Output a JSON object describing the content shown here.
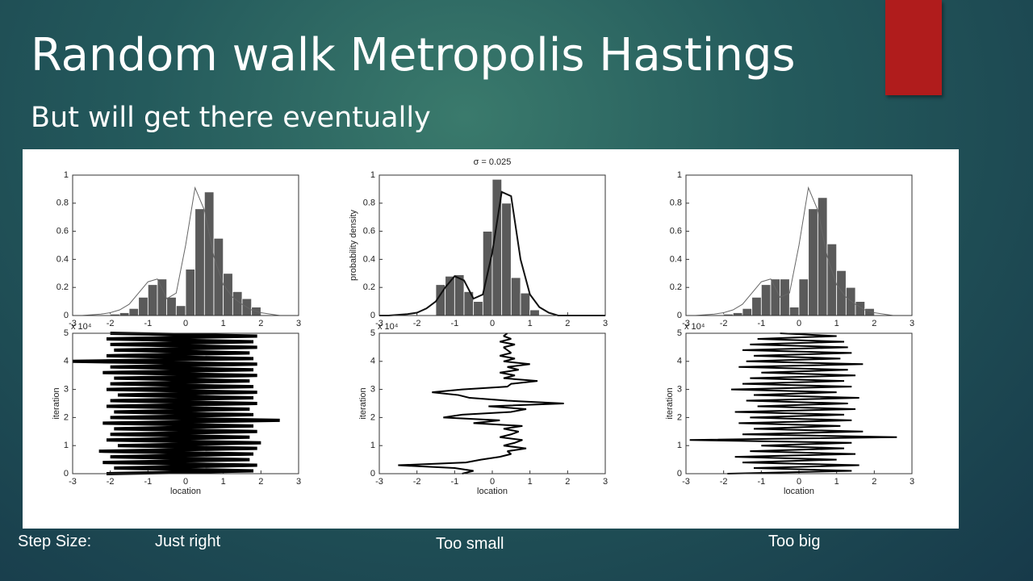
{
  "slide": {
    "title": "Random walk Metropolis Hastings",
    "subtitle": "But will get there eventually",
    "step_label": "Step Size:",
    "captions": [
      "Just right",
      "Too small",
      "Too big"
    ]
  },
  "chart_data": [
    {
      "type": "histogram",
      "color": "#5a5a5a",
      "bins": [
        -2,
        -1.75,
        -1.5,
        -1.25,
        -1,
        -0.75,
        -0.5,
        -0.25,
        0,
        0.25,
        0.5,
        0.75,
        1,
        1.25,
        1.5,
        1.75,
        2
      ],
      "values": [
        0.01,
        0.02,
        0.05,
        0.13,
        0.22,
        0.26,
        0.13,
        0.07,
        0.33,
        0.76,
        0.88,
        0.55,
        0.3,
        0.17,
        0.12,
        0.06
      ],
      "line": {
        "color": "#666666",
        "x": [
          -3,
          -2.75,
          -2.5,
          -2.25,
          -2,
          -1.75,
          -1.5,
          -1.25,
          -1,
          -0.75,
          -0.5,
          -0.25,
          0,
          0.25,
          0.5,
          0.75,
          1,
          1.25,
          1.5,
          1.75,
          2,
          2.25,
          2.5,
          2.75,
          3
        ],
        "values": [
          0,
          0,
          0.005,
          0.01,
          0.02,
          0.04,
          0.08,
          0.16,
          0.24,
          0.26,
          0.12,
          0.16,
          0.5,
          0.91,
          0.75,
          0.42,
          0.22,
          0.13,
          0.08,
          0.04,
          0.02,
          0.01,
          0,
          0,
          0
        ]
      },
      "xlim": [
        -3,
        3
      ],
      "ylim": [
        0,
        1
      ],
      "xticks": [
        -3,
        -2,
        -1,
        0,
        1,
        2,
        3
      ],
      "yticks": [
        0,
        0.2,
        0.4,
        0.6,
        0.8,
        1
      ]
    },
    {
      "type": "histogram",
      "title": "σ = 0.025",
      "ylabel": "probability density",
      "color": "#5a5a5a",
      "bins": [
        -1.5,
        -1.25,
        -1,
        -0.75,
        -0.5,
        -0.25,
        0,
        0.25,
        0.5,
        0.75,
        1,
        1.25
      ],
      "values": [
        0.22,
        0.28,
        0.29,
        0.17,
        0.1,
        0.6,
        0.97,
        0.8,
        0.27,
        0.16,
        0.04
      ],
      "line": {
        "color": "#111111",
        "x": [
          -3,
          -2.75,
          -2.5,
          -2.25,
          -2,
          -1.75,
          -1.5,
          -1.25,
          -1,
          -0.75,
          -0.5,
          -0.25,
          0,
          0.25,
          0.5,
          0.75,
          1,
          1.25,
          1.5,
          1.75,
          2,
          2.25,
          2.5,
          2.75,
          3
        ],
        "values": [
          0,
          0,
          0.005,
          0.01,
          0.02,
          0.05,
          0.1,
          0.2,
          0.28,
          0.25,
          0.12,
          0.15,
          0.45,
          0.88,
          0.85,
          0.4,
          0.15,
          0.06,
          0.02,
          0,
          0,
          0,
          0,
          0,
          0
        ]
      },
      "xlim": [
        -3,
        3
      ],
      "ylim": [
        0,
        1
      ],
      "xticks": [
        -3,
        -2,
        -1,
        0,
        1,
        2,
        3
      ],
      "yticks": [
        0,
        0.2,
        0.4,
        0.6,
        0.8,
        1
      ]
    },
    {
      "type": "histogram",
      "color": "#5a5a5a",
      "bins": [
        -2,
        -1.75,
        -1.5,
        -1.25,
        -1,
        -0.75,
        -0.5,
        -0.25,
        0,
        0.25,
        0.5,
        0.75,
        1,
        1.25,
        1.5,
        1.75,
        2
      ],
      "values": [
        0.01,
        0.02,
        0.05,
        0.13,
        0.22,
        0.26,
        0.26,
        0.06,
        0.26,
        0.76,
        0.84,
        0.51,
        0.32,
        0.2,
        0.1,
        0.05
      ],
      "line": {
        "color": "#666666",
        "x": [
          -3,
          -2.75,
          -2.5,
          -2.25,
          -2,
          -1.75,
          -1.5,
          -1.25,
          -1,
          -0.75,
          -0.5,
          -0.25,
          0,
          0.25,
          0.5,
          0.75,
          1,
          1.25,
          1.5,
          1.75,
          2,
          2.25,
          2.5,
          2.75,
          3
        ],
        "values": [
          0,
          0,
          0.005,
          0.01,
          0.02,
          0.04,
          0.08,
          0.16,
          0.24,
          0.26,
          0.13,
          0.16,
          0.5,
          0.91,
          0.75,
          0.42,
          0.22,
          0.13,
          0.08,
          0.04,
          0.02,
          0.01,
          0,
          0,
          0
        ]
      },
      "xlim": [
        -3,
        3
      ],
      "ylim": [
        0,
        1
      ],
      "xticks": [
        -3,
        -2,
        -1,
        0,
        1,
        2,
        3
      ],
      "yticks": [
        0,
        0.2,
        0.4,
        0.6,
        0.8,
        1
      ]
    },
    {
      "type": "trace",
      "color": "#000000",
      "xlabel": "location",
      "ylabel": "iteration",
      "y_scale_label": "x 10⁴",
      "x": [
        -2.1,
        1.8,
        -1.9,
        1.9,
        -2.2,
        1.7,
        -2.0,
        1.8,
        -2.3,
        1.9,
        -1.8,
        2.0,
        -2.1,
        1.7,
        -2.0,
        1.9,
        -1.9,
        1.8,
        -2.2,
        2.5,
        -2.0,
        1.8,
        -1.9,
        1.7,
        -2.1,
        1.9,
        -2.0,
        1.8,
        -1.8,
        1.9,
        -2.1,
        1.8,
        -2.0,
        1.7,
        -1.9,
        1.9,
        -2.2,
        1.8,
        -2.0,
        1.9,
        -3.0,
        1.8,
        -2.1,
        1.7,
        -1.9,
        1.9,
        -2.0,
        1.8,
        -2.1,
        1.9,
        -2.0
      ],
      "y": [
        0,
        0.1,
        0.2,
        0.3,
        0.4,
        0.5,
        0.6,
        0.7,
        0.8,
        0.9,
        1,
        1.1,
        1.2,
        1.3,
        1.4,
        1.5,
        1.6,
        1.7,
        1.8,
        1.9,
        2,
        2.1,
        2.2,
        2.3,
        2.4,
        2.5,
        2.6,
        2.7,
        2.8,
        2.9,
        3,
        3.1,
        3.2,
        3.3,
        3.4,
        3.5,
        3.6,
        3.7,
        3.8,
        3.9,
        4,
        4.1,
        4.2,
        4.3,
        4.4,
        4.5,
        4.6,
        4.7,
        4.8,
        4.9,
        5
      ],
      "xlim": [
        -3,
        3
      ],
      "ylim": [
        0,
        5
      ],
      "xticks": [
        -3,
        -2,
        -1,
        0,
        1,
        2,
        3
      ],
      "yticks": [
        0,
        1,
        2,
        3,
        4,
        5
      ]
    },
    {
      "type": "trace",
      "color": "#000000",
      "xlabel": "location",
      "ylabel": "iteration",
      "y_scale_label": "x 10⁴",
      "x": [
        -0.8,
        -0.5,
        -1.0,
        -2.5,
        -0.7,
        -0.3,
        0.2,
        0.5,
        0.4,
        0.9,
        0.3,
        0.6,
        0.8,
        0.2,
        0.5,
        0.7,
        0.3,
        0.8,
        -0.5,
        0.2,
        -1.3,
        -0.8,
        0.5,
        0.9,
        -0.1,
        1.9,
        0.4,
        -0.6,
        -0.9,
        -1.6,
        -0.8,
        0.4,
        0.5,
        1.2,
        0.3,
        0.6,
        0.2,
        0.7,
        0.4,
        1.0,
        0.3,
        0.6,
        0.2,
        0.5,
        0.4,
        0.3,
        0.6,
        0.2,
        0.5,
        0.3,
        0.4
      ],
      "y": [
        0,
        0.1,
        0.2,
        0.3,
        0.4,
        0.5,
        0.6,
        0.7,
        0.8,
        0.9,
        1,
        1.1,
        1.2,
        1.3,
        1.4,
        1.5,
        1.6,
        1.7,
        1.8,
        1.9,
        2,
        2.1,
        2.2,
        2.3,
        2.4,
        2.5,
        2.6,
        2.7,
        2.8,
        2.9,
        3,
        3.1,
        3.2,
        3.3,
        3.4,
        3.5,
        3.6,
        3.7,
        3.8,
        3.9,
        4,
        4.1,
        4.2,
        4.3,
        4.4,
        4.5,
        4.6,
        4.7,
        4.8,
        4.9,
        5
      ],
      "xlim": [
        -3,
        3
      ],
      "ylim": [
        0,
        5
      ],
      "xticks": [
        -3,
        -2,
        -1,
        0,
        1,
        2,
        3
      ],
      "yticks": [
        0,
        1,
        2,
        3,
        4,
        5
      ]
    },
    {
      "type": "trace",
      "color": "#000000",
      "xlabel": "location",
      "ylabel": "iteration",
      "y_scale_label": "x 10⁴",
      "x": [
        -1.9,
        1.4,
        -1.2,
        1.6,
        -1.5,
        1.0,
        -1.7,
        1.5,
        -1.3,
        1.2,
        -1.0,
        1.4,
        -2.9,
        2.6,
        -1.5,
        1.7,
        -1.2,
        1.1,
        -1.6,
        1.4,
        -1.3,
        1.2,
        -1.7,
        1.5,
        -1.1,
        1.3,
        -1.4,
        1.6,
        -1.2,
        1.0,
        -1.8,
        1.4,
        -1.5,
        1.2,
        -1.3,
        1.5,
        -1.0,
        1.3,
        -1.6,
        1.7,
        -1.4,
        1.1,
        -1.2,
        1.4,
        -1.5,
        1.3,
        -1.3,
        1.2,
        -1.1,
        1.0,
        -0.5
      ],
      "y": [
        0,
        0.1,
        0.2,
        0.3,
        0.4,
        0.5,
        0.6,
        0.7,
        0.8,
        0.9,
        1,
        1.1,
        1.2,
        1.3,
        1.4,
        1.5,
        1.6,
        1.7,
        1.8,
        1.9,
        2,
        2.1,
        2.2,
        2.3,
        2.4,
        2.5,
        2.6,
        2.7,
        2.8,
        2.9,
        3,
        3.1,
        3.2,
        3.3,
        3.4,
        3.5,
        3.6,
        3.7,
        3.8,
        3.9,
        4,
        4.1,
        4.2,
        4.3,
        4.4,
        4.5,
        4.6,
        4.7,
        4.8,
        4.9,
        5
      ],
      "xlim": [
        -3,
        3
      ],
      "ylim": [
        0,
        5
      ],
      "xticks": [
        -3,
        -2,
        -1,
        0,
        1,
        2,
        3
      ],
      "yticks": [
        0,
        1,
        2,
        3,
        4,
        5
      ]
    }
  ]
}
